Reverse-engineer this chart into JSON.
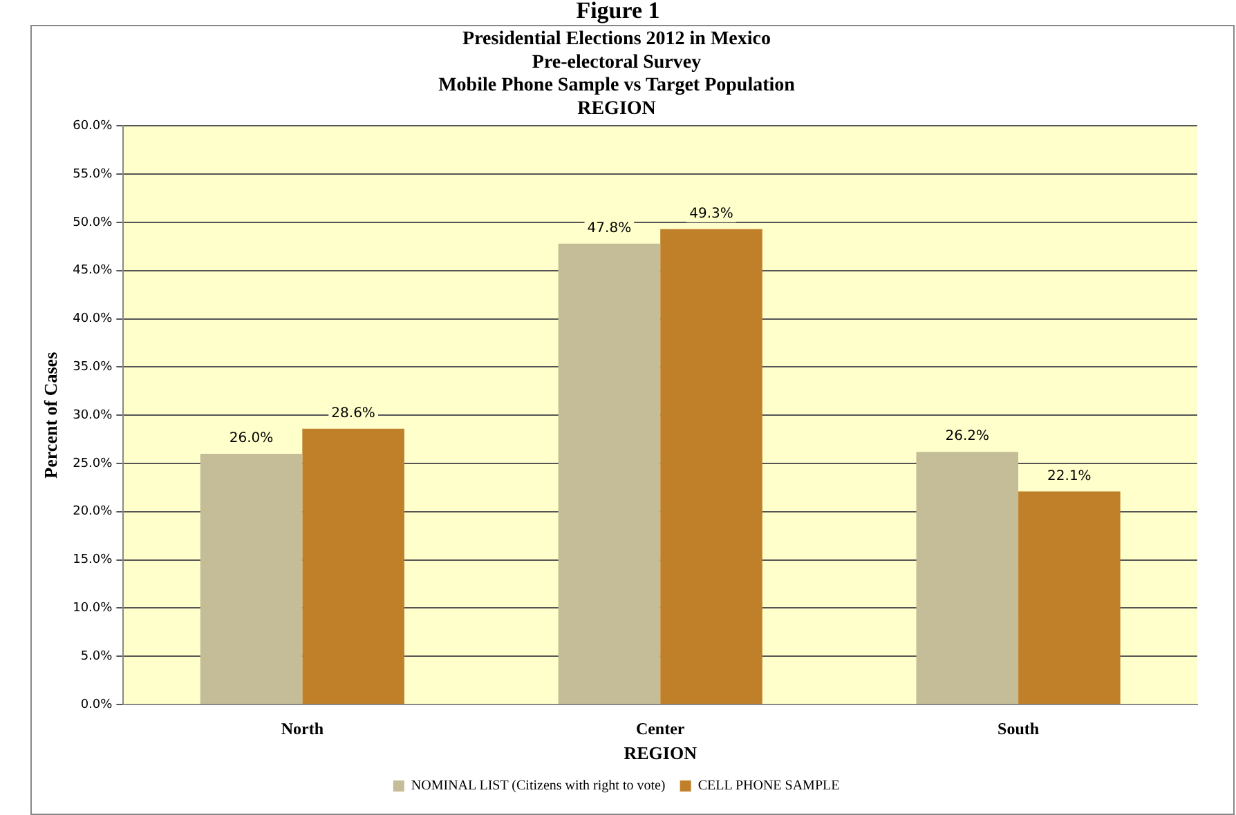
{
  "chart_data": {
    "type": "bar",
    "title": "Presidential Elections 2012 in Mexico\nPre-electoral Survey\nMobile Phone Sample vs Target Population\nREGION",
    "xlabel": "REGION",
    "ylabel": "Percent of Cases",
    "annotations": [
      "Figure 1"
    ],
    "categories": [
      "North",
      "Center",
      "South"
    ],
    "series": [
      {
        "name": "NOMINAL LIST (Citizens with right to vote)",
        "color": "#c4bd97",
        "values": [
          26.0,
          47.8,
          26.2
        ],
        "value_labels": [
          "26.0%",
          "47.8%",
          "26.2%"
        ]
      },
      {
        "name": "CELL PHONE SAMPLE",
        "color": "#c0802a",
        "values": [
          28.6,
          49.3,
          22.1
        ],
        "value_labels": [
          "28.6%",
          "49.3%",
          "22.1%"
        ]
      }
    ],
    "ylim": [
      0,
      60
    ],
    "yticks": [
      {
        "value": 0,
        "label": "0.0%"
      },
      {
        "value": 5,
        "label": "5.0%"
      },
      {
        "value": 10,
        "label": "10.0%"
      },
      {
        "value": 15,
        "label": "15.0%"
      },
      {
        "value": 20,
        "label": "20.0%"
      },
      {
        "value": 25,
        "label": "25.0%"
      },
      {
        "value": 30,
        "label": "30.0%"
      },
      {
        "value": 35,
        "label": "35.0%"
      },
      {
        "value": 40,
        "label": "40.0%"
      },
      {
        "value": 45,
        "label": "45.0%"
      },
      {
        "value": 50,
        "label": "50.0%"
      },
      {
        "value": 55,
        "label": "55.0%"
      },
      {
        "value": 60,
        "label": "60.0%"
      }
    ],
    "grid": "y",
    "legend": "bottom"
  }
}
